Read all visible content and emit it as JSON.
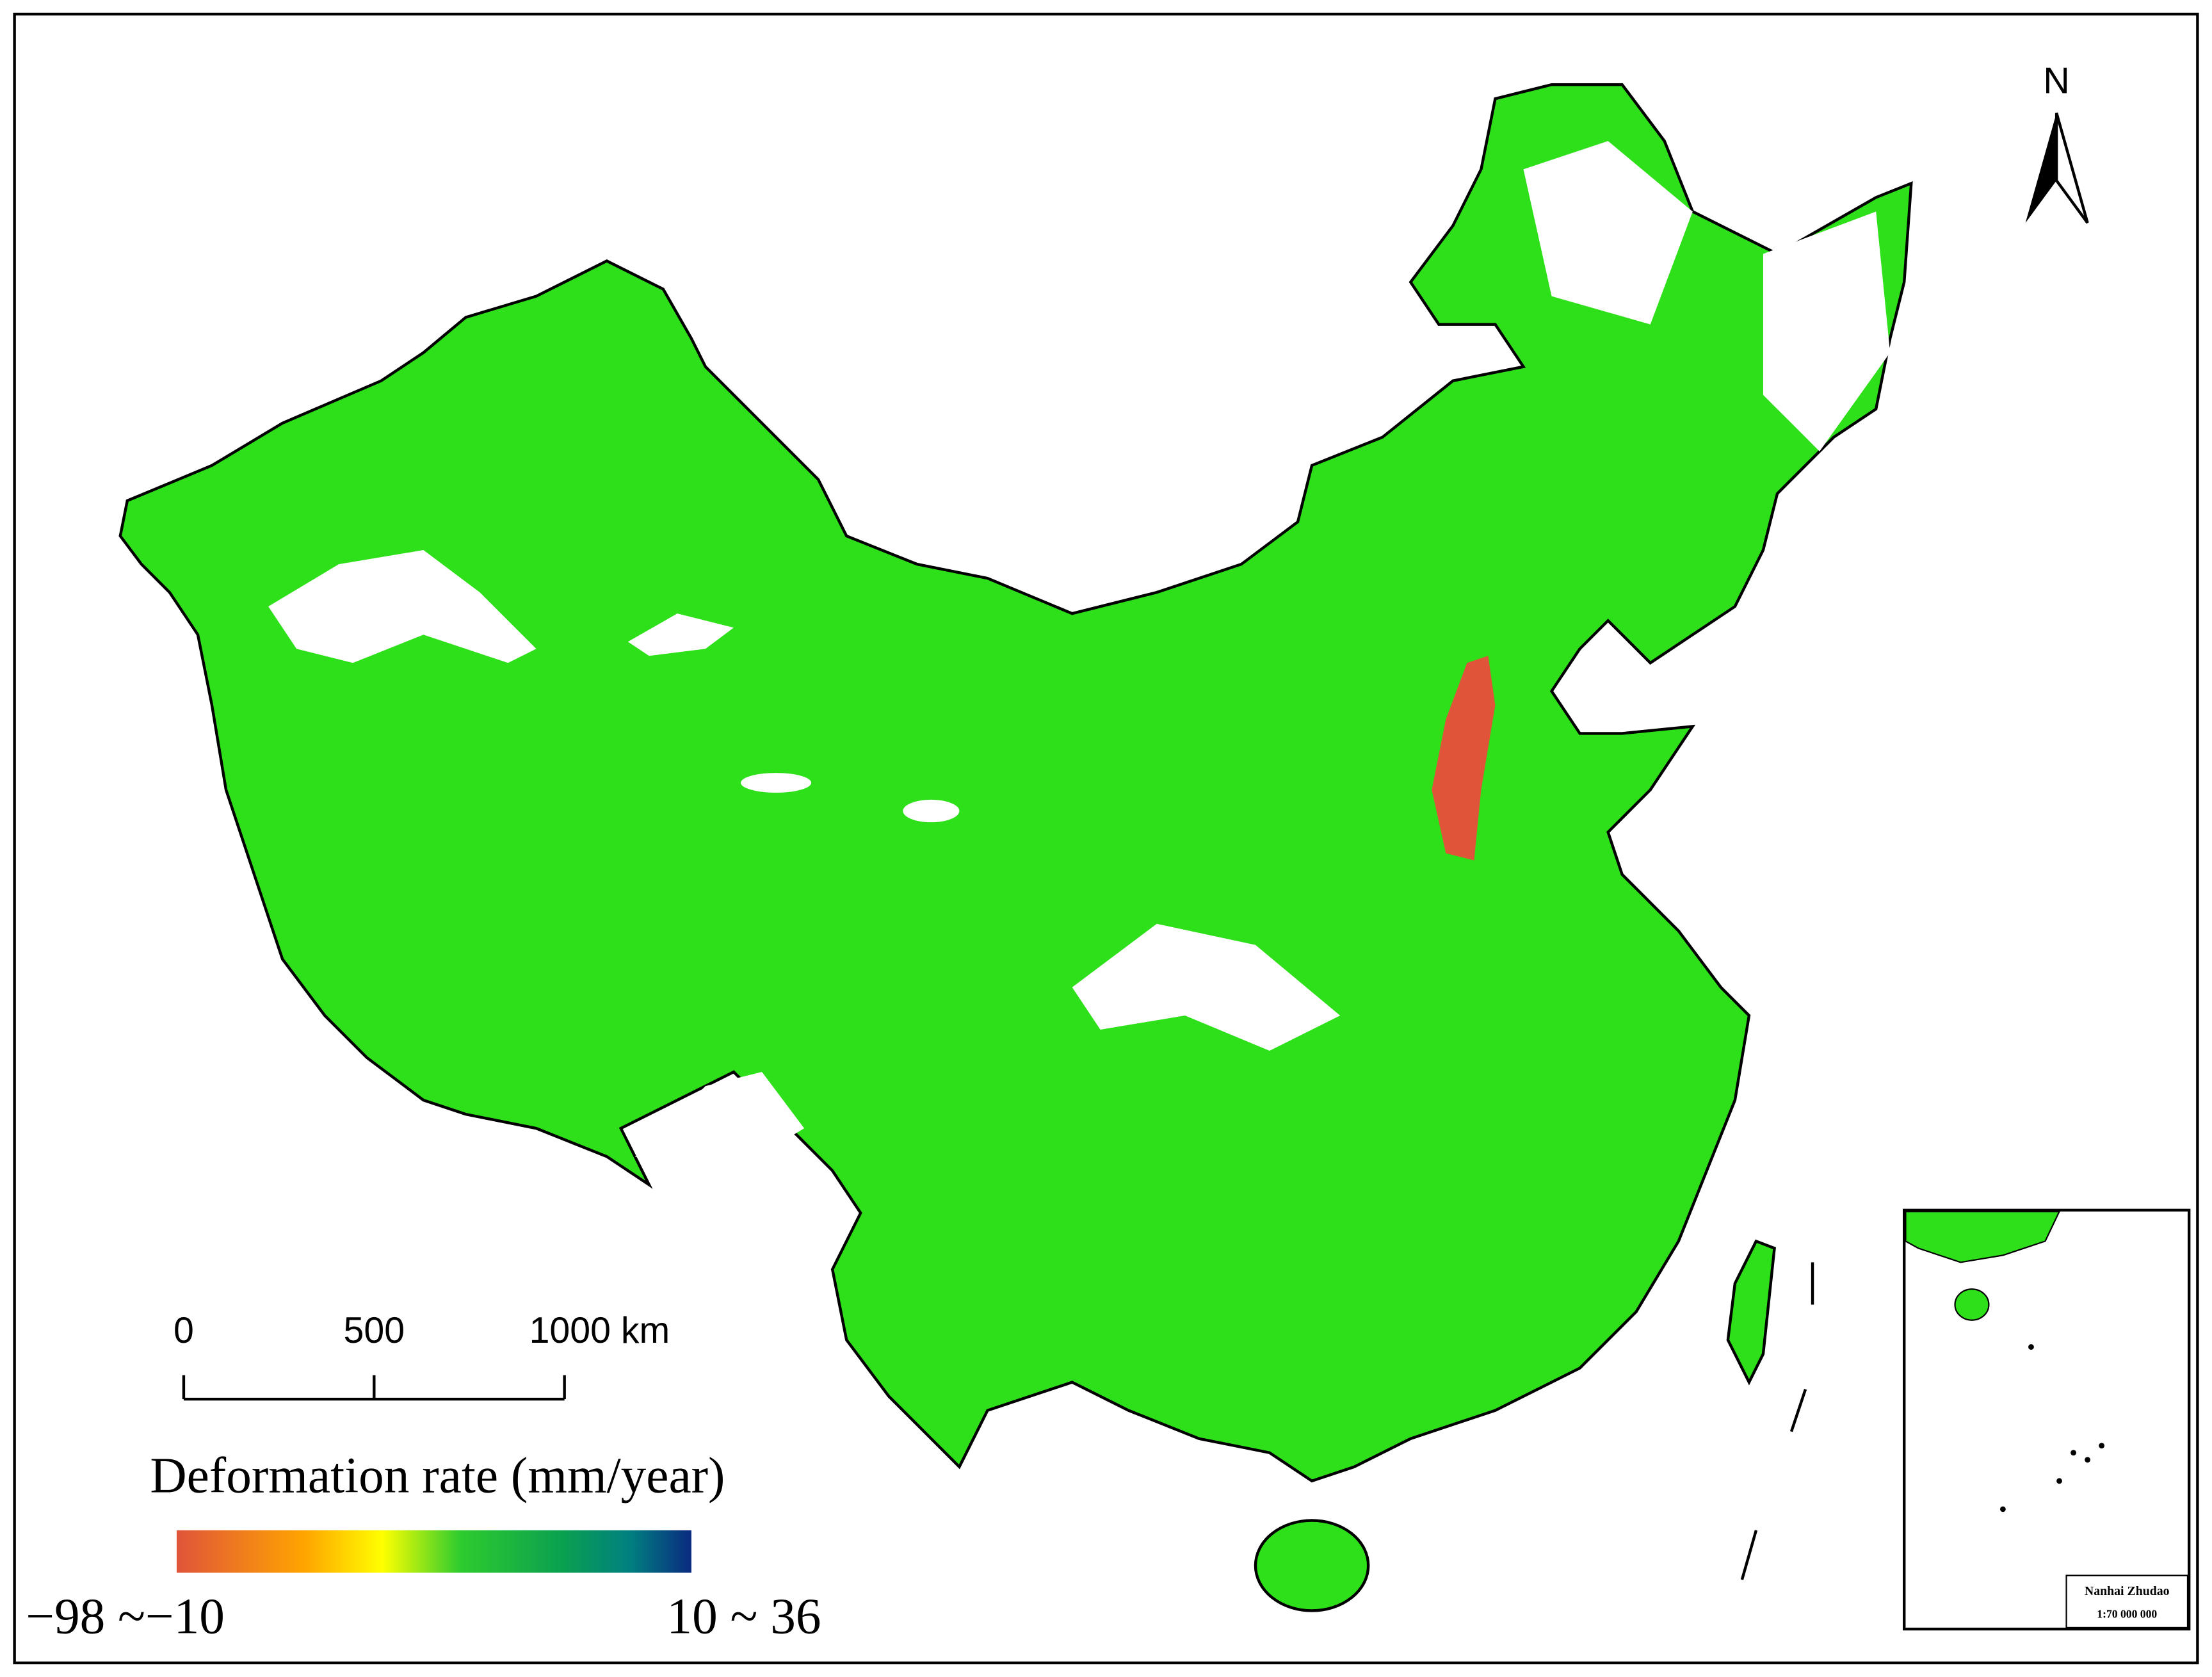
{
  "north_arrow": {
    "label": "N"
  },
  "scale_bar": {
    "labels": [
      "0",
      "500",
      "1000 km"
    ]
  },
  "legend": {
    "title": "Deformation rate (mm/year)",
    "low_label": "−98 ~−10",
    "high_label": "10 ~ 36"
  },
  "inset": {
    "title": "Nanhai Zhudao",
    "scale": "1:70 000 000"
  }
}
